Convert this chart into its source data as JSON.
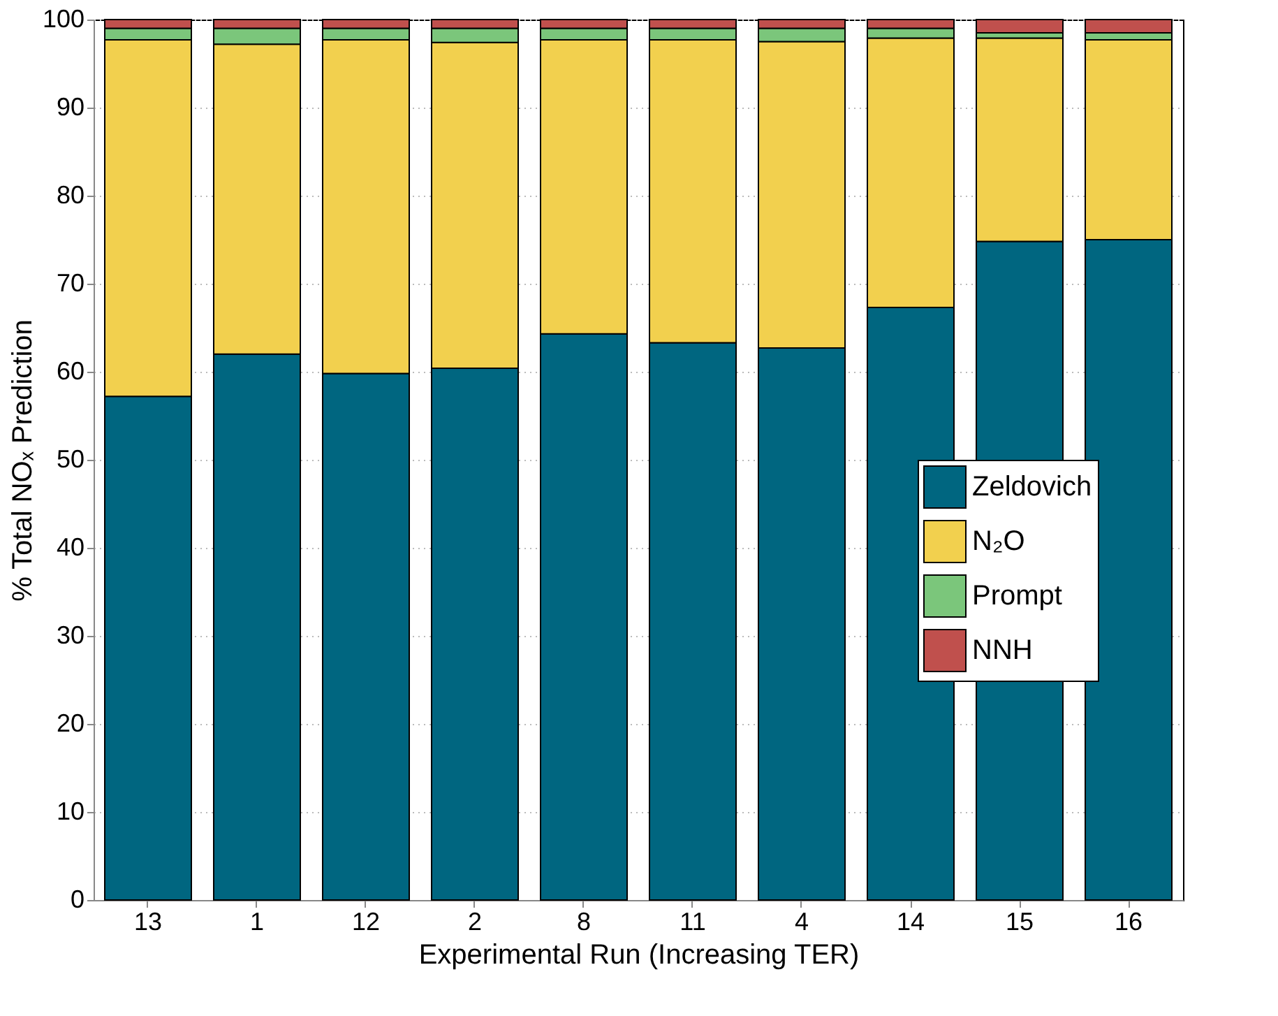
{
  "chart_data": {
    "type": "bar",
    "stacked": true,
    "xlabel": "Experimental Run (Increasing TER)",
    "ylabel": "% Total NOₓ Prediction",
    "categories": [
      "13",
      "1",
      "12",
      "2",
      "8",
      "11",
      "4",
      "14",
      "15",
      "16"
    ],
    "series": [
      {
        "name": "Zeldovich",
        "color": "#006680",
        "values": [
          57.2,
          62.0,
          59.8,
          60.4,
          64.3,
          63.3,
          62.7,
          67.3,
          74.8,
          75.0
        ]
      },
      {
        "name": "N₂O",
        "color": "#f2d04e",
        "values": [
          40.5,
          35.2,
          37.9,
          37.0,
          33.4,
          34.4,
          34.8,
          30.6,
          23.1,
          22.7
        ]
      },
      {
        "name": "Prompt",
        "color": "#7bc67b",
        "values": [
          1.3,
          1.8,
          1.3,
          1.6,
          1.3,
          1.3,
          1.5,
          1.1,
          0.6,
          0.8
        ]
      },
      {
        "name": "NNH",
        "color": "#c0504d",
        "values": [
          1.0,
          1.0,
          1.0,
          1.0,
          1.0,
          1.0,
          1.0,
          1.0,
          1.5,
          1.5
        ]
      }
    ],
    "ylim": [
      0,
      100
    ],
    "yticks": [
      0,
      10,
      20,
      30,
      40,
      50,
      60,
      70,
      80,
      90,
      100
    ],
    "grid": true,
    "legend": "right"
  }
}
